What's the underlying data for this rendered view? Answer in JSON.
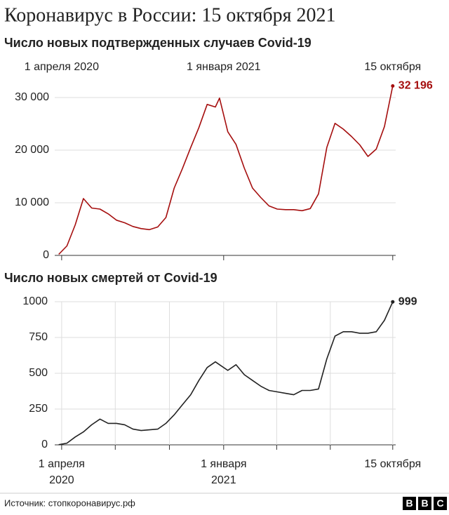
{
  "title": "Коронавирус в России: 15 октября 2021",
  "source": "Источник: стопкоронавирус.рф",
  "logo": [
    "B",
    "B",
    "C"
  ],
  "chart_data": [
    {
      "type": "line",
      "title": "Число новых подтвержденных случаев Covid-19",
      "color": "#a50e0e",
      "grid": "y",
      "x": [
        "2020-03-27",
        "2020-04-10",
        "2020-04-24",
        "2020-05-08",
        "2020-05-22",
        "2020-06-05",
        "2020-06-19",
        "2020-07-03",
        "2020-07-17",
        "2020-07-31",
        "2020-08-14",
        "2020-08-28",
        "2020-09-11",
        "2020-09-25",
        "2020-10-09",
        "2020-10-23",
        "2020-11-06",
        "2020-11-20",
        "2020-12-04",
        "2020-12-18",
        "2020-12-25",
        "2021-01-08",
        "2021-01-22",
        "2021-02-05",
        "2021-02-19",
        "2021-03-05",
        "2021-03-19",
        "2021-04-02",
        "2021-04-16",
        "2021-04-30",
        "2021-05-14",
        "2021-05-28",
        "2021-06-11",
        "2021-06-25",
        "2021-07-09",
        "2021-07-23",
        "2021-08-06",
        "2021-08-20",
        "2021-09-03",
        "2021-09-17",
        "2021-10-01",
        "2021-10-15"
      ],
      "values": [
        200,
        1800,
        5800,
        10800,
        9000,
        8800,
        7900,
        6700,
        6200,
        5500,
        5100,
        4900,
        5400,
        7200,
        12800,
        16500,
        20500,
        24300,
        28700,
        28200,
        29900,
        23500,
        21100,
        16600,
        12800,
        11000,
        9400,
        8800,
        8700,
        8700,
        8500,
        8900,
        11700,
        20500,
        25100,
        24000,
        22600,
        21000,
        18800,
        20200,
        24500,
        32196
      ],
      "value_labels": [
        null,
        null,
        null,
        null,
        null,
        null,
        null,
        null,
        null,
        null,
        null,
        null,
        null,
        null,
        null,
        null,
        null,
        null,
        null,
        null,
        null,
        null,
        null,
        null,
        null,
        null,
        null,
        null,
        null,
        null,
        null,
        null,
        null,
        null,
        null,
        null,
        null,
        null,
        null,
        null,
        null,
        "32 196"
      ],
      "xlim": [
        "2020-03-25",
        "2021-10-20"
      ],
      "xticks": [
        {
          "value": "2020-04-01",
          "label": "1 апреля 2020"
        },
        {
          "value": "2021-01-01",
          "label": "1 января 2021"
        },
        {
          "value": "2021-10-15",
          "label": "15 октября"
        }
      ],
      "ylim": [
        0,
        32000
      ],
      "yticks": [
        0,
        {
          "value": 10000,
          "label": "10 000"
        },
        {
          "value": 20000,
          "label": "20 000"
        },
        {
          "value": 30000,
          "label": "30 000"
        }
      ]
    },
    {
      "type": "line",
      "title": "Число новых смертей от Covid-19",
      "color": "#222222",
      "grid": "both",
      "x": [
        "2020-03-27",
        "2020-04-10",
        "2020-04-24",
        "2020-05-08",
        "2020-05-22",
        "2020-06-05",
        "2020-06-19",
        "2020-07-03",
        "2020-07-17",
        "2020-07-31",
        "2020-08-14",
        "2020-08-28",
        "2020-09-11",
        "2020-09-25",
        "2020-10-09",
        "2020-10-23",
        "2020-11-06",
        "2020-11-20",
        "2020-12-04",
        "2020-12-18",
        "2020-12-25",
        "2021-01-08",
        "2021-01-22",
        "2021-02-05",
        "2021-02-19",
        "2021-03-05",
        "2021-03-19",
        "2021-04-02",
        "2021-04-16",
        "2021-04-30",
        "2021-05-14",
        "2021-05-28",
        "2021-06-11",
        "2021-06-25",
        "2021-07-09",
        "2021-07-23",
        "2021-08-06",
        "2021-08-20",
        "2021-09-03",
        "2021-09-17",
        "2021-10-01",
        "2021-10-15"
      ],
      "values": [
        1,
        12,
        55,
        90,
        140,
        180,
        150,
        150,
        140,
        110,
        100,
        105,
        110,
        150,
        210,
        280,
        350,
        450,
        540,
        580,
        560,
        520,
        560,
        490,
        450,
        410,
        380,
        370,
        360,
        350,
        380,
        380,
        390,
        600,
        760,
        790,
        790,
        780,
        780,
        790,
        870,
        999
      ],
      "xlim": [
        "2020-03-25",
        "2021-10-20"
      ],
      "xticks": [
        {
          "value": "2020-04-01",
          "label": [
            "1 апреля",
            "2020"
          ]
        },
        {
          "value": "2020-07-01",
          "label": null
        },
        {
          "value": "2020-10-01",
          "label": null
        },
        {
          "value": "2021-01-01",
          "label": [
            "1 января",
            "2021"
          ]
        },
        {
          "value": "2021-04-01",
          "label": null
        },
        {
          "value": "2021-07-01",
          "label": null
        },
        {
          "value": "2021-10-15",
          "label": [
            "15 октября"
          ]
        }
      ],
      "ylim": [
        0,
        1000
      ],
      "yticks": [
        0,
        250,
        500,
        750,
        1000
      ]
    }
  ]
}
